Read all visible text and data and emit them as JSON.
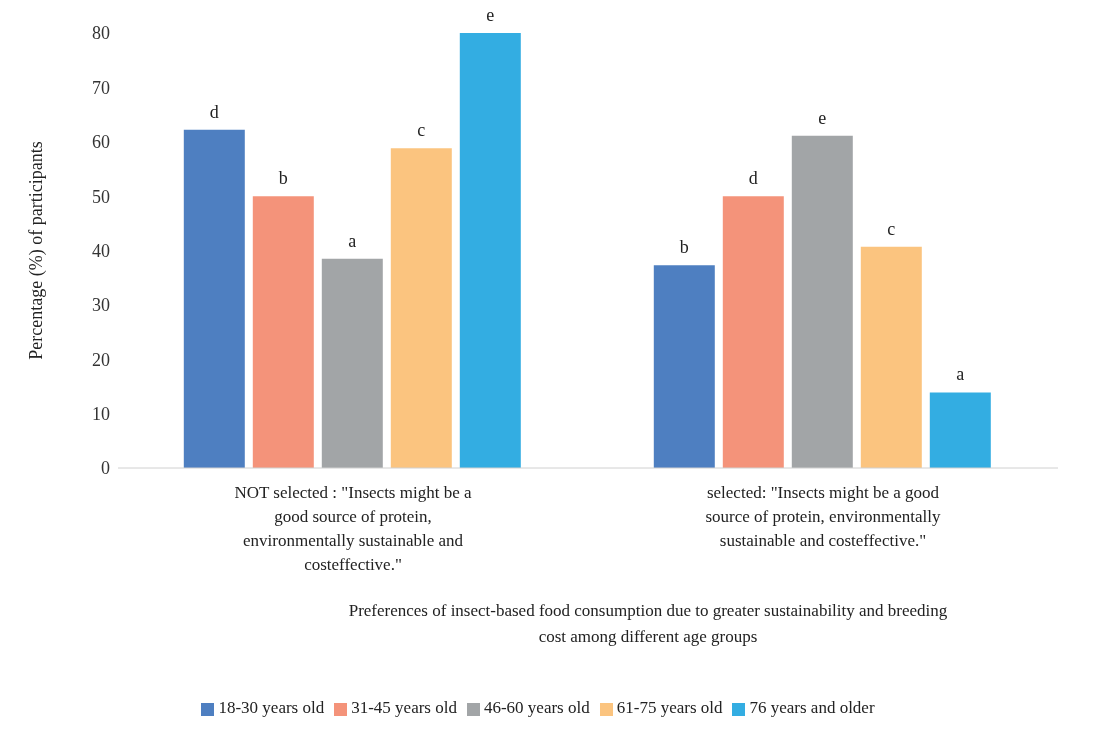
{
  "chart_data": {
    "type": "bar",
    "xlabel": "Preferences of insect-based food consumption due to greater sustainability and breeding cost among different age groups",
    "ylabel": "Percentage (%) of participants",
    "categories": [
      "NOT selected : \"Insects might be a good source of protein, environmentally sustainable and costeffective.\"",
      "selected: \"Insects might be a good source of protein, environmentally sustainable and costeffective.\""
    ],
    "series": [
      {
        "name": "18-30 years old",
        "color": "#4e7fc1",
        "values": [
          62.2,
          37.3
        ],
        "value_labels": [
          "d",
          "b"
        ]
      },
      {
        "name": "31-45 years old",
        "color": "#f4937a",
        "values": [
          50,
          50
        ],
        "value_labels": [
          "b",
          "d"
        ]
      },
      {
        "name": "46-60 years old",
        "color": "#a2a5a7",
        "values": [
          38.5,
          61.1
        ],
        "value_labels": [
          "a",
          "e"
        ]
      },
      {
        "name": "61-75 years old",
        "color": "#fbc47f",
        "values": [
          58.8,
          40.7
        ],
        "value_labels": [
          "c",
          "c"
        ]
      },
      {
        "name": "76 years and older",
        "color": "#33ade2",
        "values": [
          80,
          13.9
        ],
        "value_labels": [
          "e",
          "a"
        ]
      }
    ],
    "ylim": [
      0,
      80
    ],
    "yticks": [
      0,
      10,
      20,
      30,
      40,
      50,
      60,
      70,
      80
    ],
    "grid": false,
    "legend": "bottom"
  }
}
